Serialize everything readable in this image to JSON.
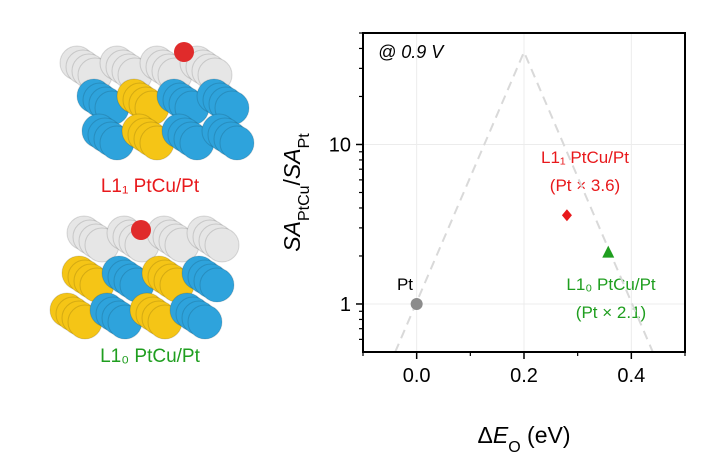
{
  "chart_data": {
    "type": "scatter",
    "xlabel": [
      {
        "text": "Δ"
      },
      {
        "text": "E",
        "italic": true
      },
      {
        "text": "O",
        "sub": true
      },
      {
        "text": " (eV)"
      }
    ],
    "ylabel": [
      {
        "text": "SA",
        "italic": true
      },
      {
        "text": "PtCu",
        "sub": true
      },
      {
        "text": "/"
      },
      {
        "text": "SA",
        "italic": true
      },
      {
        "text": "Pt",
        "sub": true
      }
    ],
    "xlim": [
      -0.1,
      0.5
    ],
    "ylim": [
      0.5,
      50
    ],
    "ylog": true,
    "xticks": [
      {
        "value": 0,
        "label": "0.0"
      },
      0.2,
      0.4
    ],
    "xminor": [
      -0.1,
      0.1,
      0.3,
      0.5
    ],
    "yticks": [
      1,
      10
    ],
    "yminor": [
      0.6,
      0.7,
      0.8,
      0.9,
      2,
      3,
      4,
      5,
      6,
      7,
      8,
      9,
      20,
      30,
      40,
      50
    ],
    "grid": true,
    "series": [
      {
        "x": [
          -0.04,
          0.2,
          0.44
        ],
        "values": [
          0.5,
          38,
          0.5
        ],
        "color": "#d9d9d9",
        "style": "dashed"
      },
      {
        "x": [
          0
        ],
        "values": [
          1
        ],
        "color": "#8c8c8c",
        "marker": "circle"
      },
      {
        "x": [
          0.28
        ],
        "values": [
          3.6
        ],
        "color": "#e8191c",
        "marker": "diamond"
      },
      {
        "x": [
          0.357
        ],
        "values": [
          2.1
        ],
        "color": "#1f9e1f",
        "marker": "triangle"
      }
    ],
    "annotations": [
      {
        "text": "@ 0.9 V",
        "color": "#000000"
      },
      {
        "text": "Pt",
        "color": "#000000"
      },
      {
        "text": "L1₁ PtCu/Pt",
        "color": "#e8191c"
      },
      {
        "text": "(Pt × 3.6)",
        "color": "#e8191c"
      },
      {
        "text": "L1₀ PtCu/Pt",
        "color": "#1f9e1f"
      },
      {
        "text": "(Pt × 2.1)",
        "color": "#1f9e1f"
      }
    ],
    "structures": [
      {
        "label": "L1₁ PtCu/Pt",
        "color": "#e8191c"
      },
      {
        "label": "L1₀ PtCu/Pt",
        "color": "#1f9e1f"
      }
    ]
  }
}
